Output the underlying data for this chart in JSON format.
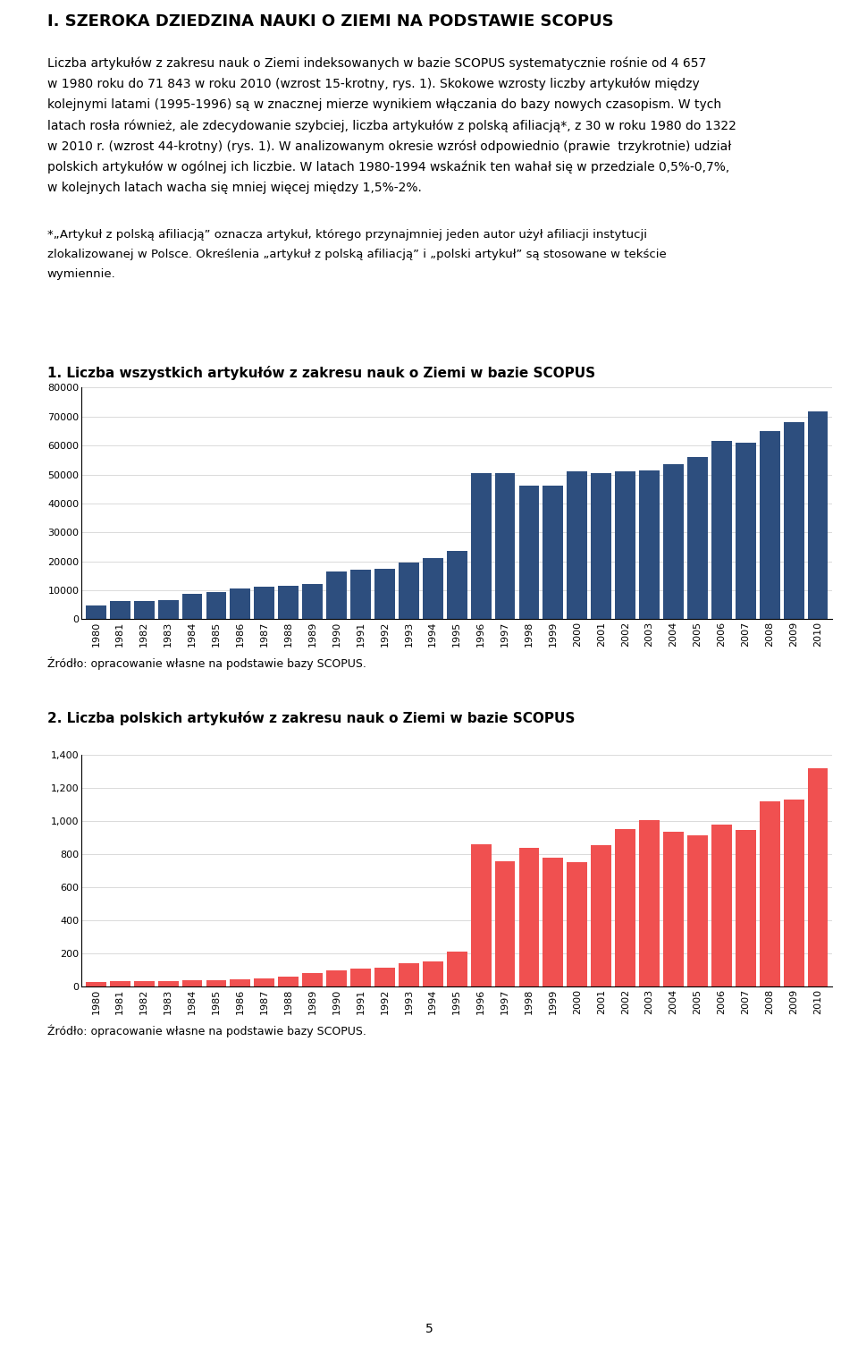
{
  "title": "I. SZEROKA DZIEDZINA NAUKI O ZIEMI NA PODSTAWIE SCOPUS",
  "paragraph_lines": [
    "Liczba artykułów z zakresu nauk o Ziemi indeksowanych w bazie SCOPUS systematycznie rośnie od 4 657",
    "w 1980 roku do 71 843 w roku 2010 (wzrost 15-krotny, rys. 1). Skokowe wzrosty liczby artykułów między",
    "kolejnymi latami (1995-1996) są w znacznej mierze wynikiem włączania do bazy nowych czasopism. W tych",
    "latach rosła również, ale zdecydowanie szybciej, liczba artykułów z polską afiliacją*, z 30 w roku 1980 do 1322",
    "w 2010 r. (wzrost 44-krotny) (rys. 1). W analizowanym okresie wzrósł odpowiednio (prawie  trzykrotnie) udział",
    "polskich artykułów w ogólnej ich liczbie. W latach 1980-1994 wskaźnik ten wahał się w przedziale 0,5%-0,7%,",
    "w kolejnych latach wacha się mniej więcej między 1,5%-2%."
  ],
  "footnote_lines": [
    "*„Artykuł z polską afiliacją” oznacza artykuł, którego przynajmniej jeden autor użył afiliacji instytucji",
    "zlokalizowanej w Polsce. Określenia „artykuł z polską afiliacją” i „polski artykuł” są stosowane w tekście",
    "wymiennie."
  ],
  "chart1_title": "1. Liczba wszystkich artykułów z zakresu nauk o Ziemi w bazie SCOPUS",
  "chart2_title": "2. Liczba polskich artykułów z zakresu nauk o Ziemi w bazie SCOPUS",
  "source_label": "Źródło: opracowanie własne na podstawie bazy SCOPUS.",
  "years": [
    1980,
    1981,
    1982,
    1983,
    1984,
    1985,
    1986,
    1987,
    1988,
    1989,
    1990,
    1991,
    1992,
    1993,
    1994,
    1995,
    1996,
    1997,
    1998,
    1999,
    2000,
    2001,
    2002,
    2003,
    2004,
    2005,
    2006,
    2007,
    2008,
    2009,
    2010
  ],
  "all_articles": [
    4657,
    6200,
    6400,
    6600,
    8800,
    9500,
    10500,
    11200,
    11500,
    12000,
    16500,
    17000,
    17500,
    19500,
    21000,
    23500,
    50500,
    50500,
    46000,
    46000,
    51000,
    50500,
    51000,
    51500,
    53500,
    56000,
    61500,
    61000,
    65000,
    68000,
    71843
  ],
  "polish_articles": [
    30,
    35,
    32,
    35,
    38,
    40,
    45,
    50,
    58,
    80,
    100,
    110,
    115,
    140,
    155,
    210,
    860,
    760,
    840,
    780,
    750,
    855,
    955,
    1005,
    935,
    915,
    980,
    950,
    1120,
    1130,
    1322
  ],
  "bar_color_1": "#2d4e7e",
  "bar_color_2": "#f05050",
  "page_number": "5",
  "title_fontsize": 13,
  "body_fontsize": 10,
  "footnote_fontsize": 9.5,
  "chart_title_fontsize": 11,
  "source_fontsize": 9,
  "tick_fontsize": 8,
  "page_bg": "#ffffff",
  "chart_bg": "#ffffff"
}
